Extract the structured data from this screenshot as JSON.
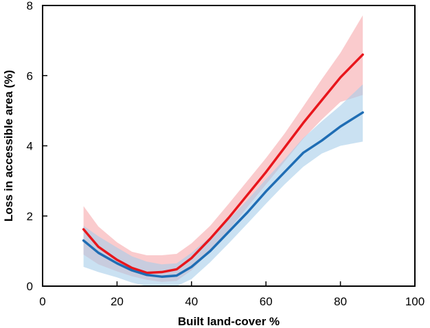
{
  "chart_data": {
    "type": "line",
    "xlabel": "Built land-cover %",
    "ylabel": "Loss in accessible area (%)",
    "xlim": [
      0,
      100
    ],
    "ylim": [
      0,
      8
    ],
    "xticks": [
      0,
      20,
      40,
      60,
      80,
      100
    ],
    "yticks": [
      0,
      2,
      4,
      6,
      8
    ],
    "grid": false,
    "legend": "none",
    "series": [
      {
        "color": "#e8161c",
        "band_color": "#f7a8ac",
        "x": [
          11,
          15,
          20,
          24,
          28,
          32,
          36,
          40,
          45,
          50,
          55,
          60,
          65,
          70,
          75,
          80,
          86
        ],
        "y": [
          1.62,
          1.12,
          0.75,
          0.52,
          0.38,
          0.4,
          0.48,
          0.8,
          1.35,
          1.95,
          2.6,
          3.25,
          3.95,
          4.65,
          5.3,
          5.95,
          6.6
        ],
        "lower": [
          0.9,
          0.62,
          0.42,
          0.28,
          0.18,
          0.12,
          0.15,
          0.45,
          1.0,
          1.6,
          2.25,
          2.9,
          3.55,
          4.2,
          4.75,
          5.25,
          5.45
        ],
        "upper": [
          2.28,
          1.7,
          1.25,
          0.98,
          0.88,
          0.88,
          0.92,
          1.22,
          1.72,
          2.35,
          3.0,
          3.65,
          4.35,
          5.12,
          5.9,
          6.65,
          7.72
        ]
      },
      {
        "color": "#1f6db4",
        "band_color": "#a6cdea",
        "x": [
          11,
          15,
          20,
          24,
          28,
          32,
          36,
          40,
          45,
          50,
          55,
          60,
          65,
          70,
          75,
          80,
          86
        ],
        "y": [
          1.3,
          0.95,
          0.65,
          0.45,
          0.32,
          0.27,
          0.3,
          0.55,
          1.0,
          1.55,
          2.1,
          2.7,
          3.25,
          3.8,
          4.15,
          4.55,
          4.95
        ],
        "lower": [
          0.55,
          0.4,
          0.25,
          0.1,
          0.0,
          0.0,
          0.0,
          0.2,
          0.68,
          1.22,
          1.78,
          2.35,
          2.9,
          3.4,
          3.78,
          4.0,
          4.12
        ],
        "upper": [
          1.72,
          1.42,
          1.1,
          0.85,
          0.7,
          0.62,
          0.65,
          0.95,
          1.4,
          1.9,
          2.45,
          3.05,
          3.62,
          4.22,
          4.7,
          5.15,
          5.75
        ]
      }
    ]
  }
}
